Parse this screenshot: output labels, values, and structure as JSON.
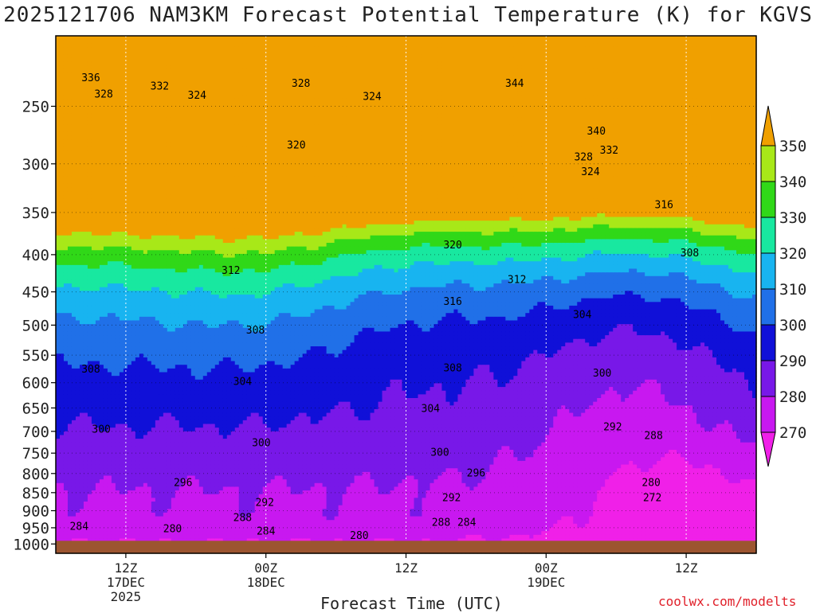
{
  "title": "2025121706 NAM3KM Forecast Potential Temperature (K) for KGVS",
  "xlabel": "Forecast Time (UTC)",
  "credit": "coolwx.com/modelts",
  "colors": {
    "ground": "#9c5530",
    "contour_line": "#000000",
    "grid": "#ffffff"
  },
  "chart_data": {
    "type": "heatmap",
    "title": "2025121706 NAM3KM Forecast Potential Temperature (K) for KGVS",
    "xlabel": "Forecast Time (UTC)",
    "ylabel": "",
    "y_scale": "log",
    "y_inverted": true,
    "ylim": [
      1030,
      200
    ],
    "x_hours": [
      0,
      60
    ],
    "ground_level_hpa": 990,
    "y_ticks": [
      250,
      300,
      350,
      400,
      450,
      500,
      550,
      600,
      650,
      700,
      750,
      800,
      850,
      900,
      950,
      1000
    ],
    "x_ticks": [
      {
        "hour": 6,
        "label": "12Z",
        "sub1": "17DEC",
        "sub2": "2025"
      },
      {
        "hour": 18,
        "label": "00Z",
        "sub1": "18DEC",
        "sub2": ""
      },
      {
        "hour": 30,
        "label": "12Z",
        "sub1": "",
        "sub2": ""
      },
      {
        "hour": 42,
        "label": "00Z",
        "sub1": "19DEC",
        "sub2": ""
      },
      {
        "hour": 54,
        "label": "12Z",
        "sub1": "",
        "sub2": ""
      }
    ],
    "colorbar": {
      "levels": [
        270,
        280,
        290,
        300,
        310,
        320,
        330,
        340,
        350
      ],
      "labels": [
        "270",
        "280",
        "290",
        "300",
        "310",
        "320",
        "330",
        "340",
        "350"
      ],
      "colors": [
        "#f020e8",
        "#c818f0",
        "#7818e8",
        "#1010d8",
        "#2070e8",
        "#18b4f0",
        "#18e8a0",
        "#30d818",
        "#a8e818",
        "#f0f020",
        "#f0a000"
      ]
    },
    "contour_labels": [
      {
        "hour": 3.0,
        "hpa": 228,
        "value": "336"
      },
      {
        "hour": 8.9,
        "hpa": 234,
        "value": "332"
      },
      {
        "hour": 4.1,
        "hpa": 240,
        "value": "328"
      },
      {
        "hour": 12.1,
        "hpa": 241,
        "value": "324"
      },
      {
        "hour": 21.0,
        "hpa": 232,
        "value": "328"
      },
      {
        "hour": 27.1,
        "hpa": 242,
        "value": "324"
      },
      {
        "hour": 39.3,
        "hpa": 232,
        "value": "344"
      },
      {
        "hour": 46.3,
        "hpa": 270,
        "value": "340"
      },
      {
        "hour": 47.4,
        "hpa": 287,
        "value": "332"
      },
      {
        "hour": 45.2,
        "hpa": 293,
        "value": "328"
      },
      {
        "hour": 45.8,
        "hpa": 307,
        "value": "324"
      },
      {
        "hour": 52.1,
        "hpa": 341,
        "value": "316"
      },
      {
        "hour": 20.6,
        "hpa": 282,
        "value": "320"
      },
      {
        "hour": 34.0,
        "hpa": 387,
        "value": "320"
      },
      {
        "hour": 54.3,
        "hpa": 397,
        "value": "308"
      },
      {
        "hour": 15.0,
        "hpa": 420,
        "value": "312"
      },
      {
        "hour": 39.5,
        "hpa": 432,
        "value": "312"
      },
      {
        "hour": 34.0,
        "hpa": 463,
        "value": "316"
      },
      {
        "hour": 45.1,
        "hpa": 483,
        "value": "304"
      },
      {
        "hour": 17.1,
        "hpa": 507,
        "value": "308"
      },
      {
        "hour": 3.0,
        "hpa": 574,
        "value": "308"
      },
      {
        "hour": 16.0,
        "hpa": 597,
        "value": "304"
      },
      {
        "hour": 34.0,
        "hpa": 572,
        "value": "308"
      },
      {
        "hour": 46.8,
        "hpa": 581,
        "value": "300"
      },
      {
        "hour": 32.1,
        "hpa": 650,
        "value": "304"
      },
      {
        "hour": 3.9,
        "hpa": 694,
        "value": "300"
      },
      {
        "hour": 17.6,
        "hpa": 725,
        "value": "300"
      },
      {
        "hour": 32.9,
        "hpa": 747,
        "value": "300"
      },
      {
        "hour": 47.7,
        "hpa": 689,
        "value": "292"
      },
      {
        "hour": 51.2,
        "hpa": 708,
        "value": "288"
      },
      {
        "hour": 10.9,
        "hpa": 822,
        "value": "296"
      },
      {
        "hour": 36.0,
        "hpa": 797,
        "value": "296"
      },
      {
        "hour": 51.0,
        "hpa": 822,
        "value": "280"
      },
      {
        "hour": 17.9,
        "hpa": 875,
        "value": "292"
      },
      {
        "hour": 33.9,
        "hpa": 862,
        "value": "292"
      },
      {
        "hour": 51.1,
        "hpa": 862,
        "value": "272"
      },
      {
        "hour": 16.0,
        "hpa": 918,
        "value": "288"
      },
      {
        "hour": 33.0,
        "hpa": 932,
        "value": "288"
      },
      {
        "hour": 35.2,
        "hpa": 932,
        "value": "284"
      },
      {
        "hour": 2.0,
        "hpa": 944,
        "value": "284"
      },
      {
        "hour": 10.0,
        "hpa": 951,
        "value": "280"
      },
      {
        "hour": 18.0,
        "hpa": 958,
        "value": "284"
      },
      {
        "hour": 26.0,
        "hpa": 972,
        "value": "280"
      }
    ]
  }
}
